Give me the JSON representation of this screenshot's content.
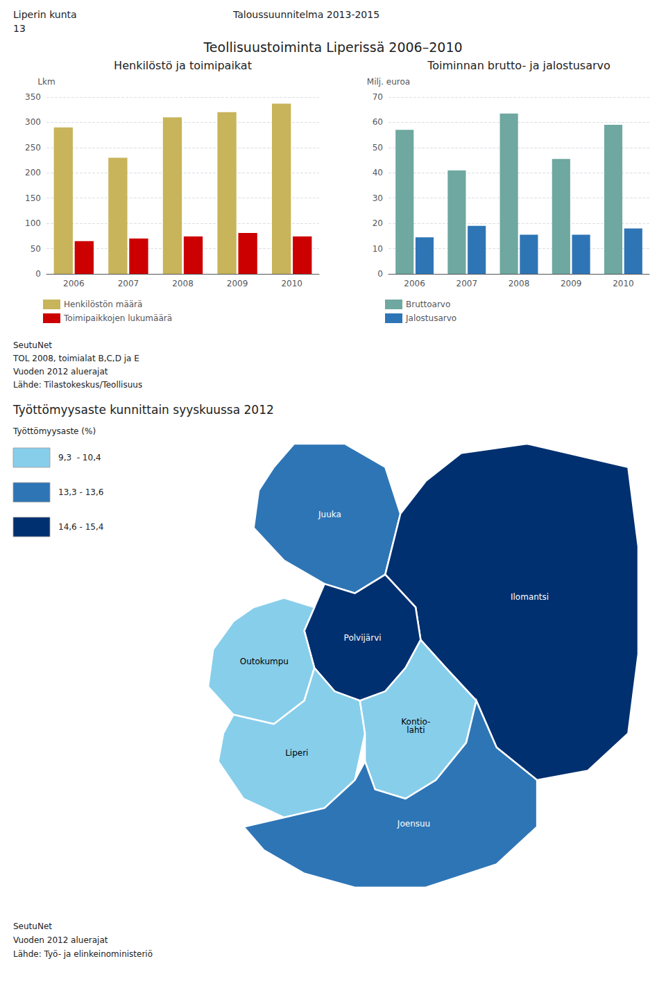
{
  "header": [
    "Liperin kunta",
    "Taloussuunnitelma 2013-2015",
    "13"
  ],
  "title": "Teollisuustoiminta Liperissä 2006–2010",
  "notes": [
    "SeutuNet",
    "TOL 2008, toimialat B,C,D ja E",
    "Vuoden 2012 aluerajat",
    "Lähde: Tilastokeskus/Teollisuus"
  ],
  "chart_data": [
    {
      "type": "bar",
      "title": "Henkilöstö ja toimipaikat",
      "ylabel": "Lkm",
      "categories": [
        "2006",
        "2007",
        "2008",
        "2009",
        "2010"
      ],
      "series": [
        {
          "name": "Henkilöstön määrä",
          "color": "#C8B45A",
          "values": [
            290,
            230,
            310,
            320,
            337
          ]
        },
        {
          "name": "Toimipaikkojen lukumäärä",
          "color": "#CC0000",
          "values": [
            65,
            70,
            74,
            81,
            74
          ]
        }
      ],
      "ylim": [
        0,
        350
      ],
      "yticks": [
        0,
        50,
        100,
        150,
        200,
        250,
        300,
        350
      ],
      "grid": true,
      "legend": "bottom"
    },
    {
      "type": "bar",
      "title": "Toiminnan brutto- ja jalostusarvo",
      "ylabel": "Milj. euroa",
      "categories": [
        "2006",
        "2007",
        "2008",
        "2009",
        "2010"
      ],
      "series": [
        {
          "name": "Bruttoarvo",
          "color": "#6EA8A0",
          "values": [
            57.0,
            41.0,
            63.5,
            45.5,
            59.0
          ]
        },
        {
          "name": "Jalostusarvo",
          "color": "#2E75B6",
          "values": [
            14.5,
            19.0,
            15.5,
            15.5,
            18.0
          ]
        }
      ],
      "ylim": [
        0,
        70
      ],
      "yticks": [
        0,
        10,
        20,
        30,
        40,
        50,
        60,
        70
      ],
      "grid": true,
      "legend": "bottom"
    },
    {
      "type": "map",
      "title": "Työttömyysaste kunnittain syyskuussa 2012",
      "categories": [
        "Juuka",
        "Ilomantsi",
        "Polvijärvi",
        "Outokumpu",
        "Liperi",
        "Kontio-\nlahti",
        "Joensuu"
      ],
      "colors": [
        "#2E75B6",
        "#003070",
        "#003070",
        "#87CEEB",
        "#87CEEB",
        "#87CEEB",
        "#2E75B6"
      ],
      "legend_title": "Työttömyysaste (%)",
      "legend_items": [
        "9,3  - 10,4",
        "13,3 - 13,6",
        "14,6 - 15,4"
      ],
      "legend_colors": [
        "#87CEEB",
        "#2E75B6",
        "#003070"
      ],
      "notes": [
        "SeutuNet",
        "Vuoden 2012 aluerajat",
        "Lähde: Työ- ja elinkeinoministeriö"
      ]
    }
  ]
}
